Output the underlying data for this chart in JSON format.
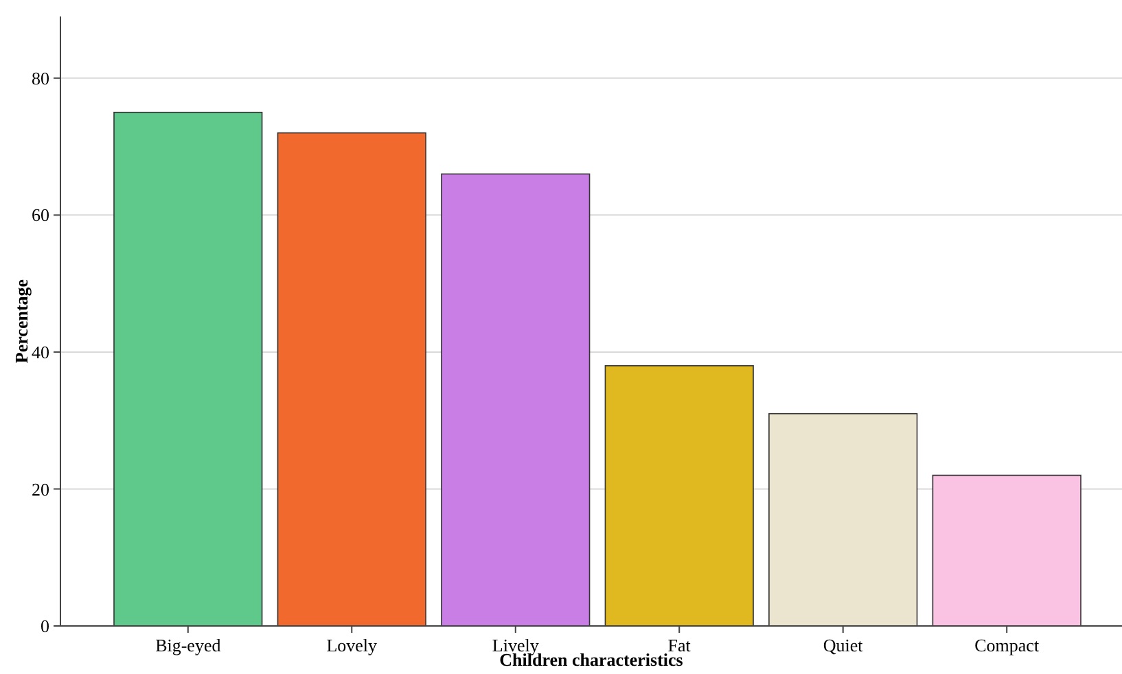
{
  "chart_data": {
    "type": "bar",
    "xlabel": "Children characteristics",
    "ylabel": "Percentage",
    "categories": [
      "Big-eyed",
      "Lovely",
      "Lively",
      "Fat",
      "Quiet",
      "Compact"
    ],
    "values": [
      75,
      72,
      66,
      38,
      31,
      22
    ],
    "colors": [
      "#5ec98b",
      "#f2692d",
      "#c97ee6",
      "#e0b820",
      "#ebe4cf",
      "#fbc3e3"
    ],
    "ylim": [
      0,
      89
    ],
    "yticks": [
      0,
      20,
      40,
      60,
      80
    ],
    "grid": "y"
  }
}
